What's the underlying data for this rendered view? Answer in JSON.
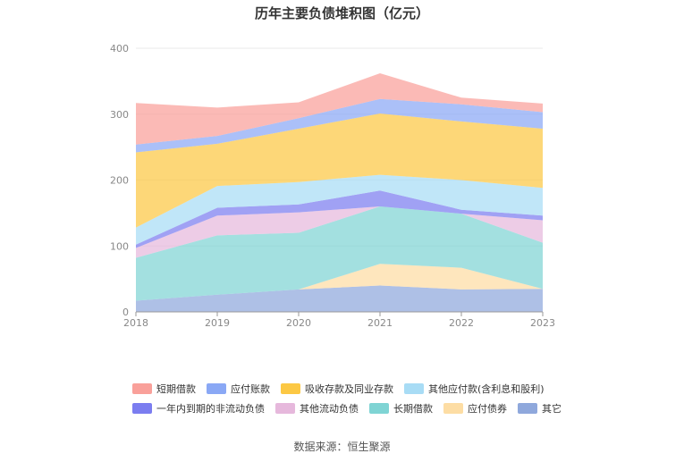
{
  "chart_data": {
    "type": "area",
    "title": "历年主要负债堆积图（亿元）",
    "x": [
      "2018",
      "2019",
      "2020",
      "2021",
      "2022",
      "2023"
    ],
    "ylim": [
      0,
      400
    ],
    "yticks": [
      0,
      100,
      200,
      300,
      400
    ],
    "stacked": true,
    "grid": true,
    "legend_position": "bottom",
    "series": [
      {
        "name": "其它",
        "color": "#8fa8dc",
        "values": [
          17,
          26,
          34,
          40,
          34,
          35
        ]
      },
      {
        "name": "应付债券",
        "color": "#fddda4",
        "values": [
          0,
          0,
          0,
          33,
          33,
          0
        ]
      },
      {
        "name": "长期借款",
        "color": "#7fd4d4",
        "values": [
          65,
          90,
          86,
          87,
          82,
          70
        ]
      },
      {
        "name": "其他流动负债",
        "color": "#e6b8dc",
        "values": [
          15,
          30,
          31,
          0,
          0,
          34
        ]
      },
      {
        "name": "一年内到期的非流动负债",
        "color": "#7b7df0",
        "values": [
          5,
          12,
          12,
          24,
          6,
          7
        ]
      },
      {
        "name": "其他应付款(含利息和股利)",
        "color": "#a8dcf5",
        "values": [
          26,
          33,
          34,
          24,
          45,
          42
        ]
      },
      {
        "name": "吸收存款及同业存款",
        "color": "#fcc844",
        "values": [
          114,
          64,
          81,
          93,
          89,
          90
        ]
      },
      {
        "name": "应付账款",
        "color": "#8aa8f5",
        "values": [
          12,
          12,
          16,
          22,
          26,
          25
        ]
      },
      {
        "name": "短期借款",
        "color": "#f9a09a",
        "values": [
          63,
          43,
          24,
          39,
          10,
          13
        ]
      }
    ],
    "legend_order": [
      "短期借款",
      "应付账款",
      "吸收存款及同业存款",
      "其他应付款(含利息和股利)",
      "一年内到期的非流动负债",
      "其他流动负债",
      "长期借款",
      "应付债券",
      "其它"
    ]
  },
  "source": "数据来源：恒生聚源"
}
